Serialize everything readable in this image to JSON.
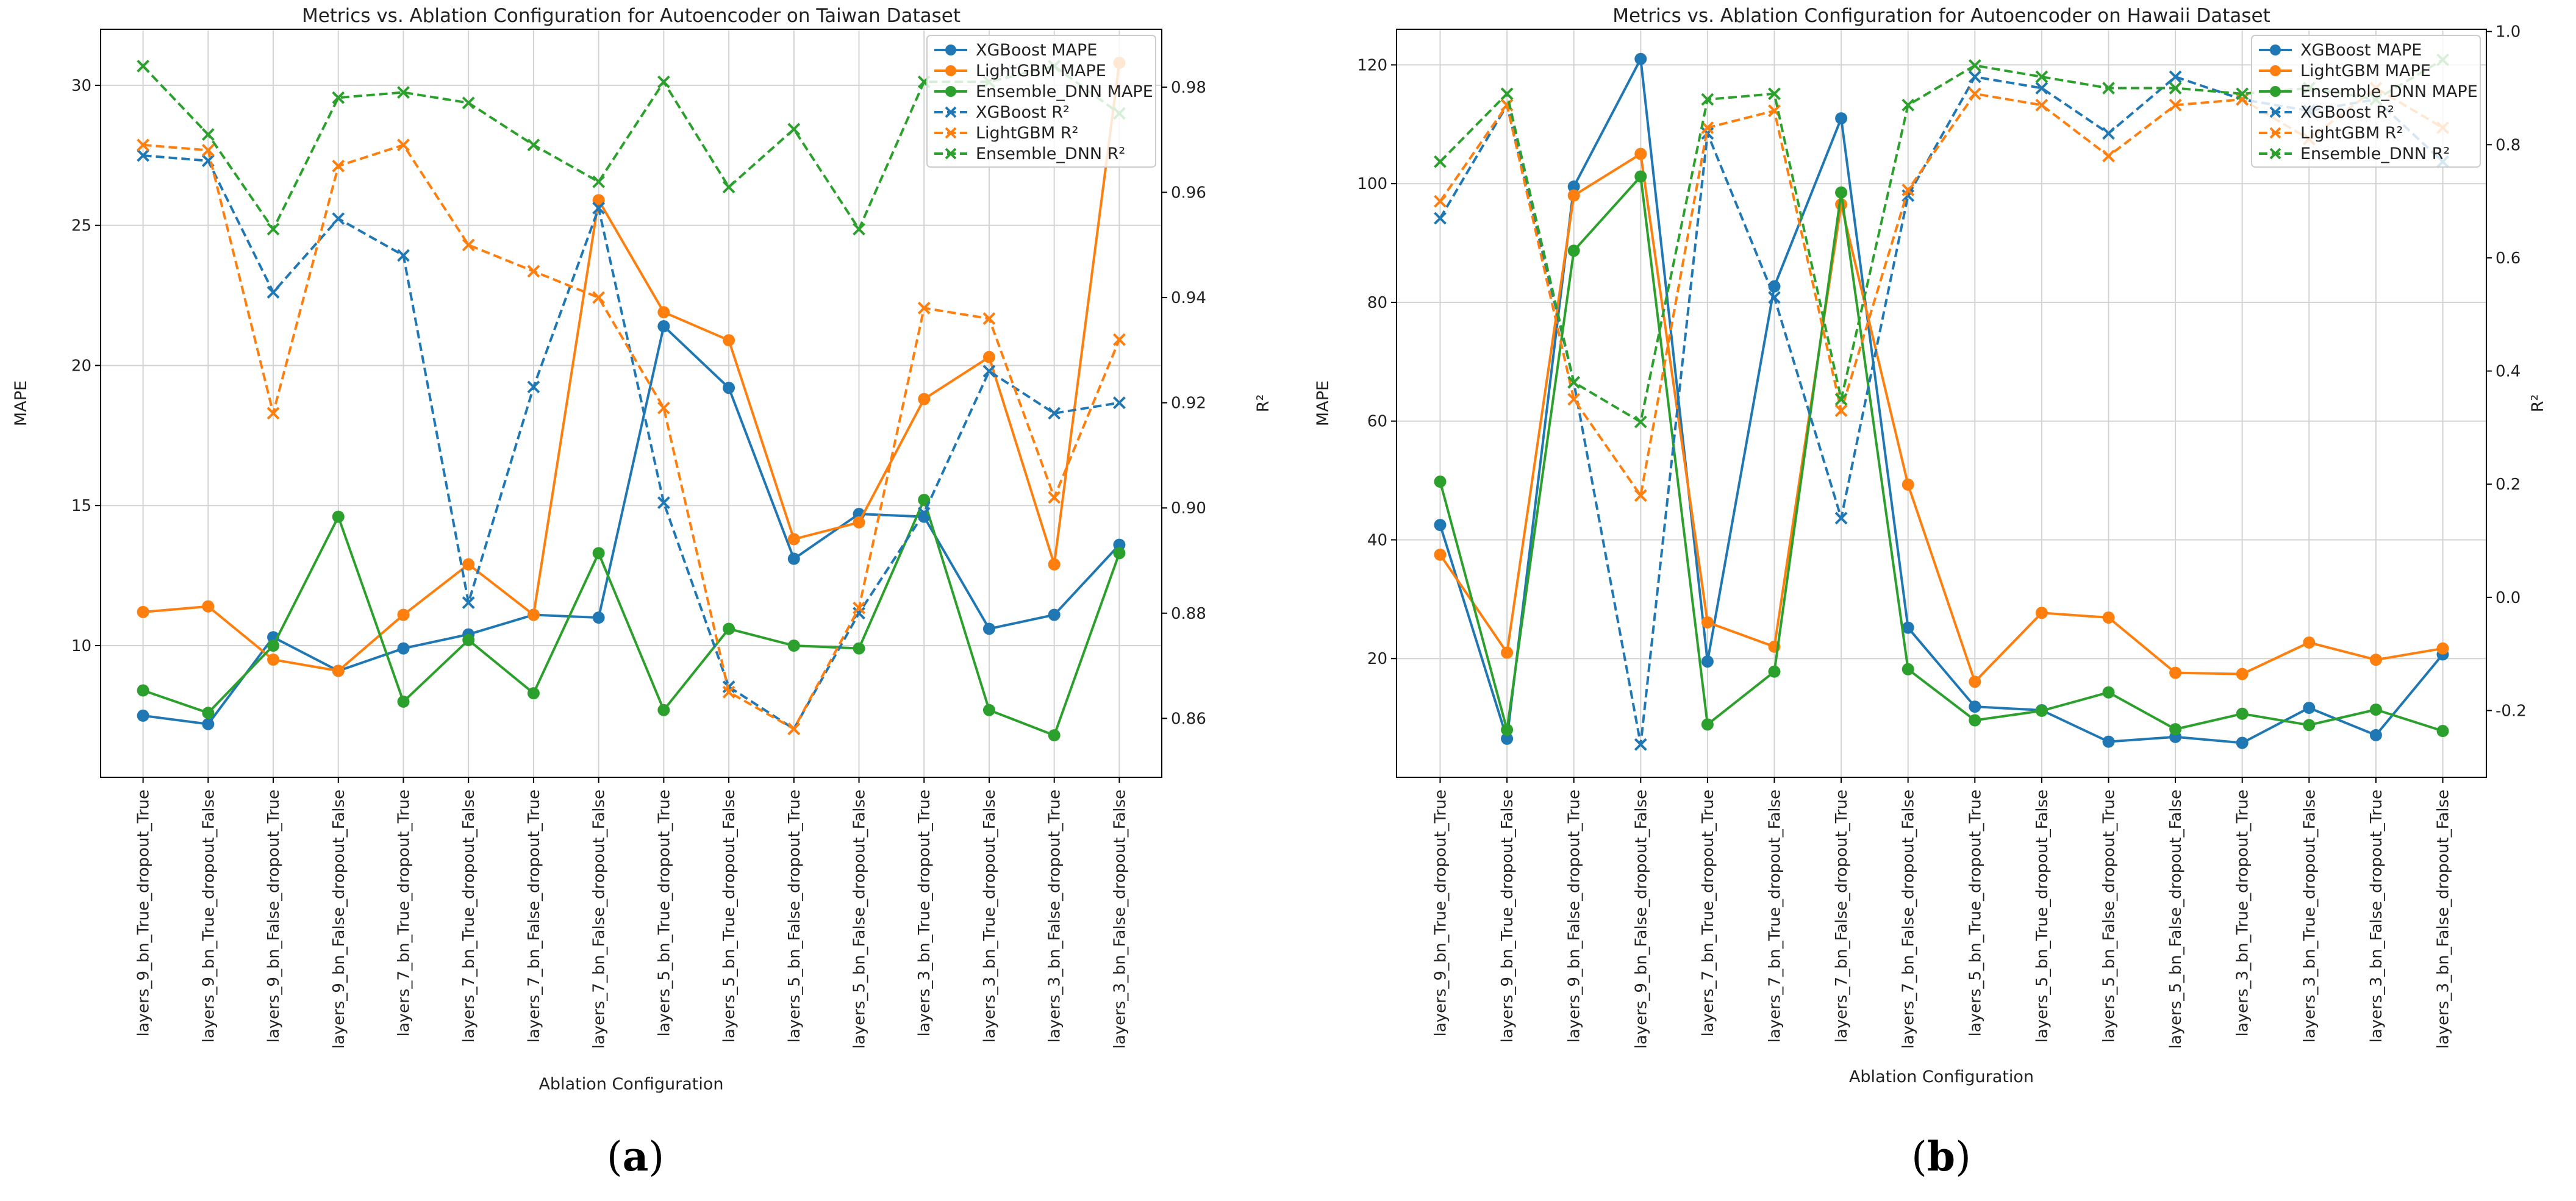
{
  "categories": [
    "layers_9_bn_True_dropout_True",
    "layers_9_bn_True_dropout_False",
    "layers_9_bn_False_dropout_True",
    "layers_9_bn_False_dropout_False",
    "layers_7_bn_True_dropout_True",
    "layers_7_bn_True_dropout_False",
    "layers_7_bn_False_dropout_True",
    "layers_7_bn_False_dropout_False",
    "layers_5_bn_True_dropout_True",
    "layers_5_bn_True_dropout_False",
    "layers_5_bn_False_dropout_True",
    "layers_5_bn_False_dropout_False",
    "layers_3_bn_True_dropout_True",
    "layers_3_bn_True_dropout_False",
    "layers_3_bn_False_dropout_True",
    "layers_3_bn_False_dropout_False"
  ],
  "colors": {
    "xgboost": "#1f77b4",
    "lightgbm": "#ff7f0e",
    "ensemble": "#2ca02c"
  },
  "chart_data": [
    {
      "type": "line",
      "title": "Metrics vs. Ablation Configuration for Autoencoder on Taiwan Dataset",
      "xlabel": "Ablation Configuration",
      "ylabel": "MAPE",
      "ylabel_right": "R²",
      "panel_label": {
        "open": "(",
        "letter": "a",
        "close": ")"
      },
      "ylim": [
        5.3,
        32.0
      ],
      "ylim_right": [
        0.8488,
        0.991
      ],
      "yticks": [
        10,
        15,
        20,
        25,
        30
      ],
      "yticks_right": [
        0.86,
        0.88,
        0.9,
        0.92,
        0.94,
        0.96,
        0.98
      ],
      "legend_position": "top-right",
      "series": [
        {
          "name": "XGBoost MAPE",
          "axis": "left",
          "color": "xgboost",
          "style": "solid",
          "marker": "circle",
          "values": [
            7.5,
            7.2,
            10.3,
            9.1,
            9.9,
            10.4,
            11.1,
            11.0,
            21.4,
            19.2,
            13.1,
            14.7,
            14.6,
            10.6,
            11.1,
            13.6
          ]
        },
        {
          "name": "LightGBM MAPE",
          "axis": "left",
          "color": "lightgbm",
          "style": "solid",
          "marker": "circle",
          "values": [
            11.2,
            11.4,
            9.5,
            9.1,
            11.1,
            12.9,
            11.1,
            25.9,
            21.9,
            20.9,
            13.8,
            14.4,
            18.8,
            20.3,
            12.9,
            30.8
          ]
        },
        {
          "name": "Ensemble_DNN MAPE",
          "axis": "left",
          "color": "ensemble",
          "style": "solid",
          "marker": "circle",
          "values": [
            8.4,
            7.6,
            10.0,
            14.6,
            8.0,
            10.2,
            8.3,
            13.3,
            7.7,
            10.6,
            10.0,
            9.9,
            15.2,
            7.7,
            6.8,
            13.3
          ]
        },
        {
          "name": "XGBoost R²",
          "axis": "right",
          "color": "xgboost",
          "style": "dashed",
          "marker": "x",
          "values": [
            0.967,
            0.966,
            0.941,
            0.955,
            0.948,
            0.882,
            0.923,
            0.957,
            0.901,
            0.866,
            0.858,
            0.88,
            0.899,
            0.926,
            0.918,
            0.92
          ]
        },
        {
          "name": "LightGBM R²",
          "axis": "right",
          "color": "lightgbm",
          "style": "dashed",
          "marker": "x",
          "values": [
            0.969,
            0.968,
            0.918,
            0.965,
            0.969,
            0.95,
            0.945,
            0.94,
            0.919,
            0.865,
            0.858,
            0.881,
            0.938,
            0.936,
            0.902,
            0.932
          ]
        },
        {
          "name": "Ensemble_DNN R²",
          "axis": "right",
          "color": "ensemble",
          "style": "dashed",
          "marker": "x",
          "values": [
            0.984,
            0.971,
            0.953,
            0.978,
            0.979,
            0.977,
            0.969,
            0.962,
            0.981,
            0.961,
            0.972,
            0.953,
            0.981,
            0.981,
            0.984,
            0.975
          ]
        }
      ]
    },
    {
      "type": "line",
      "title": "Metrics vs. Ablation Configuration for Autoencoder on Hawaii Dataset",
      "xlabel": "Ablation Configuration",
      "ylabel": "MAPE",
      "ylabel_right": "R²",
      "panel_label": {
        "open": "(",
        "letter": "b",
        "close": ")"
      },
      "ylim": [
        0,
        126
      ],
      "ylim_right": [
        -0.318,
        1.004
      ],
      "yticks": [
        20,
        40,
        60,
        80,
        100,
        120
      ],
      "yticks_right": [
        -0.2,
        0.0,
        0.2,
        0.4,
        0.6,
        0.8,
        1.0
      ],
      "legend_position": "top-right",
      "series": [
        {
          "name": "XGBoost MAPE",
          "axis": "left",
          "color": "xgboost",
          "style": "solid",
          "marker": "circle",
          "values": [
            42.5,
            6.5,
            99.5,
            121.0,
            19.5,
            82.7,
            111.0,
            25.2,
            11.9,
            11.3,
            6.0,
            6.8,
            5.8,
            11.7,
            7.1,
            20.7
          ]
        },
        {
          "name": "LightGBM MAPE",
          "axis": "left",
          "color": "lightgbm",
          "style": "solid",
          "marker": "circle",
          "values": [
            37.5,
            21.0,
            98.0,
            105.0,
            26.1,
            22.0,
            96.5,
            49.3,
            16.1,
            27.7,
            26.9,
            17.6,
            17.4,
            22.7,
            19.8,
            21.7
          ]
        },
        {
          "name": "Ensemble_DNN MAPE",
          "axis": "left",
          "color": "ensemble",
          "style": "solid",
          "marker": "circle",
          "values": [
            49.8,
            8.0,
            88.7,
            101.2,
            8.9,
            17.8,
            98.5,
            18.2,
            9.6,
            11.2,
            14.3,
            8.1,
            10.7,
            8.8,
            11.4,
            7.8
          ]
        },
        {
          "name": "XGBoost R²",
          "axis": "right",
          "color": "xgboost",
          "style": "dashed",
          "marker": "x",
          "values": [
            0.67,
            0.87,
            0.38,
            -0.26,
            0.82,
            0.53,
            0.14,
            0.71,
            0.92,
            0.9,
            0.82,
            0.92,
            0.88,
            0.86,
            0.88,
            0.77
          ]
        },
        {
          "name": "LightGBM R²",
          "axis": "right",
          "color": "lightgbm",
          "style": "dashed",
          "marker": "x",
          "values": [
            0.7,
            0.87,
            0.35,
            0.18,
            0.83,
            0.86,
            0.33,
            0.72,
            0.89,
            0.87,
            0.78,
            0.87,
            0.88,
            0.81,
            0.9,
            0.83
          ]
        },
        {
          "name": "Ensemble_DNN R²",
          "axis": "right",
          "color": "ensemble",
          "style": "dashed",
          "marker": "x",
          "values": [
            0.77,
            0.89,
            0.38,
            0.31,
            0.88,
            0.89,
            0.35,
            0.87,
            0.94,
            0.92,
            0.9,
            0.9,
            0.89,
            0.9,
            0.88,
            0.95
          ]
        }
      ]
    }
  ]
}
